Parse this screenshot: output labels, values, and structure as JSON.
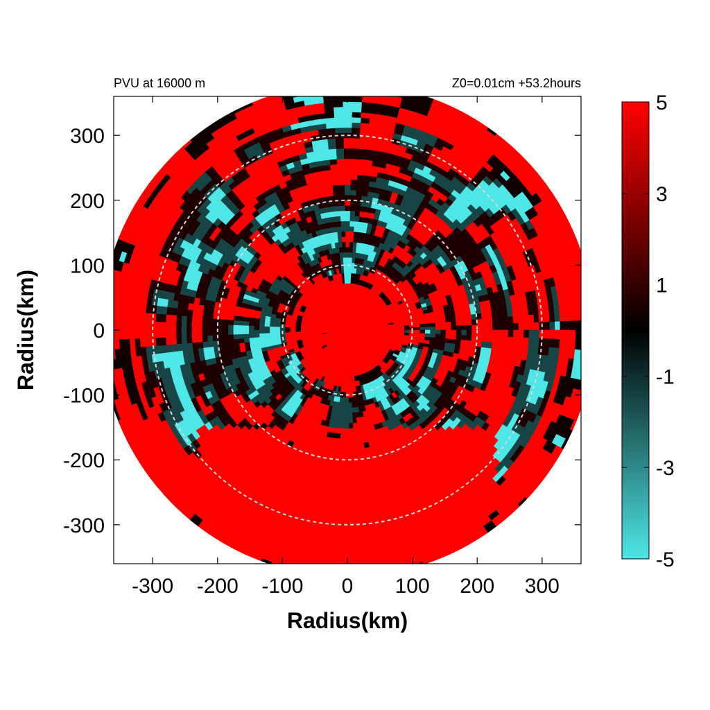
{
  "chart_data": {
    "type": "heatmap",
    "projection": "polar-domain",
    "title_left": "PVU at 16000 m",
    "title_right": "Z0=0.01cm  +53.2hours",
    "xlabel": "Radius(km)",
    "ylabel": "Radius(km)",
    "xlim": [
      -360,
      360
    ],
    "ylim": [
      -360,
      360
    ],
    "xticks": [
      -300,
      -200,
      -100,
      0,
      100,
      200,
      300
    ],
    "yticks": [
      300,
      200,
      100,
      0,
      -100,
      -200,
      -300
    ],
    "xtick_labels": [
      "-300",
      "-200",
      "-100",
      "0",
      "100",
      "200",
      "300"
    ],
    "ytick_labels": [
      "300",
      "200",
      "100",
      "0",
      "-100",
      "-200",
      "-300"
    ],
    "domain_radius_km": 380,
    "range_rings_km": [
      100,
      200,
      300
    ],
    "range_ring_style": "dashed",
    "range_ring_color": "#d8d8d8",
    "colorbar": {
      "min": -5,
      "max": 5,
      "tick_values": [
        5,
        3,
        1,
        -1,
        -3,
        -5
      ],
      "tick_labels": [
        "5",
        "3",
        "1",
        "-1",
        "-3",
        "-5"
      ],
      "colors": [
        "#4ee6e6",
        "#000000",
        "#ff0000"
      ]
    },
    "pattern_summary": {
      "core_value": 5,
      "core_radius_km": 70,
      "south_sector_value": 5,
      "mixed_band_km": [
        90,
        330
      ],
      "low_value": -5
    }
  }
}
